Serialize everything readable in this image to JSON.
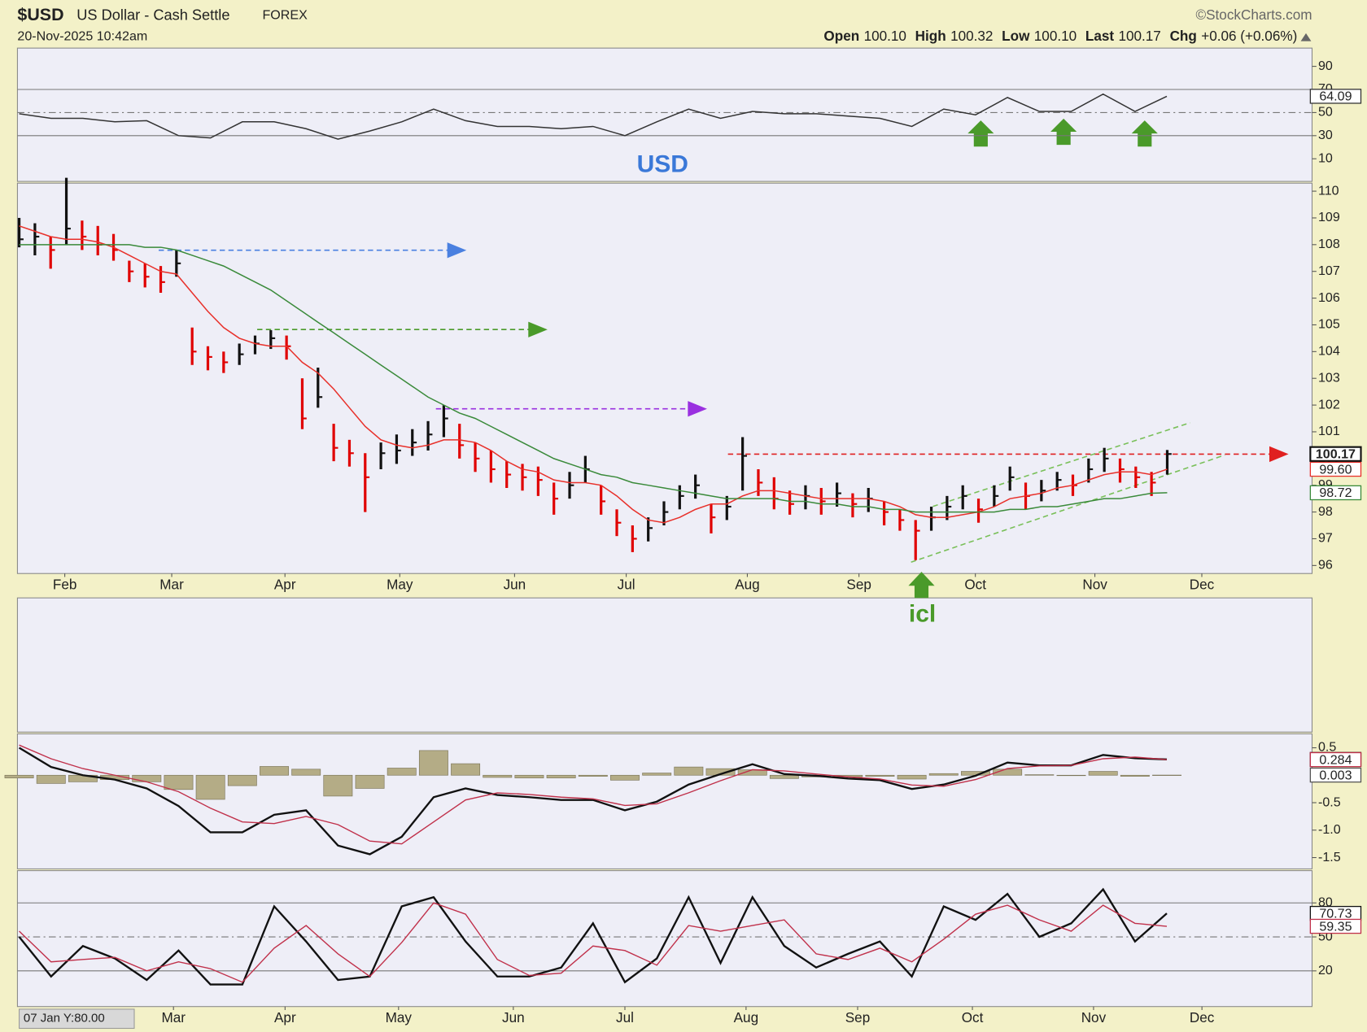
{
  "header": {
    "symbol": "$USD",
    "name": "US Dollar - Cash Settle",
    "exchange": "FOREX",
    "credit": "©StockCharts.com",
    "datetime": "20-Nov-2025 10:42am",
    "open_label": "Open",
    "open": "100.10",
    "high_label": "High",
    "high": "100.32",
    "low_label": "Low",
    "low": "100.10",
    "last_label": "Last",
    "last": "100.17",
    "chg_label": "Chg",
    "chg": "+0.06 (+0.06%)"
  },
  "cursor_readout": "07 Jan Y:80.00",
  "chart_data": [
    {
      "type": "line",
      "annotation": "USD",
      "xlim": [
        0,
        40.5
      ],
      "ylim": [
        -9.6,
        105.8
      ],
      "yticks": [
        10,
        30,
        50,
        70,
        90
      ],
      "ref_lines": [
        30,
        70
      ],
      "dashed_ref_line": 50,
      "series": [
        {
          "color": "#333333",
          "values": [
            49,
            45,
            45,
            42,
            43,
            30,
            28,
            42,
            42,
            36,
            27,
            34,
            42,
            53,
            43,
            38,
            38,
            36,
            38,
            30,
            42,
            53,
            45,
            51,
            49,
            49,
            47,
            45,
            38,
            53,
            48,
            63,
            51,
            51,
            66,
            51,
            64.09
          ]
        }
      ]
    },
    {
      "type": "ohlc",
      "annotation": "icl",
      "xlim": [
        0,
        82.1
      ],
      "ylim": [
        95.7,
        110.3
      ],
      "yticks": [
        96,
        97,
        98,
        99,
        100,
        101,
        102,
        103,
        104,
        105,
        106,
        107,
        108,
        109,
        110
      ],
      "xticks": [
        {
          "value": 2.9,
          "label": "Feb"
        },
        {
          "value": 9.7,
          "label": "Mar"
        },
        {
          "value": 16.9,
          "label": "Apr"
        },
        {
          "value": 24.2,
          "label": "May"
        },
        {
          "value": 31.5,
          "label": "Jun"
        },
        {
          "value": 38.6,
          "label": "Jul"
        },
        {
          "value": 46.3,
          "label": "Aug"
        },
        {
          "value": 53.4,
          "label": "Sep"
        },
        {
          "value": 60.8,
          "label": "Oct"
        },
        {
          "value": 68.4,
          "label": "Nov"
        },
        {
          "value": 75.2,
          "label": "Dec"
        }
      ],
      "up_color": "#111111",
      "down_color": "#e00000",
      "close": [
        108.2,
        108.3,
        107.8,
        108.6,
        108.3,
        108.0,
        107.8,
        107.0,
        106.8,
        106.6,
        107.3,
        104.0,
        103.8,
        103.6,
        103.9,
        104.3,
        104.5,
        104.2,
        101.5,
        102.3,
        100.4,
        100.2,
        99.3,
        100.2,
        100.3,
        100.6,
        100.9,
        101.5,
        100.5,
        100.0,
        99.6,
        99.4,
        99.3,
        99.2,
        98.5,
        99.0,
        99.6,
        98.4,
        97.6,
        97.0,
        97.4,
        98.0,
        98.6,
        99.0,
        97.8,
        98.2,
        100.1,
        99.1,
        98.5,
        98.3,
        98.6,
        98.4,
        98.7,
        98.3,
        98.5,
        98.0,
        97.7,
        97.3,
        97.8,
        98.2,
        98.6,
        98.1,
        98.6,
        99.3,
        98.6,
        98.8,
        99.2,
        99.0,
        99.6,
        100.0,
        99.6,
        99.3,
        99.1,
        100.17
      ],
      "high": [
        109.0,
        108.8,
        108.3,
        110.5,
        108.9,
        108.7,
        108.4,
        107.4,
        107.3,
        107.2,
        107.8,
        104.9,
        104.2,
        104.0,
        104.3,
        104.6,
        104.8,
        104.6,
        103.0,
        103.4,
        101.3,
        100.7,
        100.2,
        100.6,
        100.9,
        101.1,
        101.4,
        102.0,
        101.3,
        100.6,
        100.3,
        99.9,
        99.8,
        99.7,
        99.1,
        99.5,
        100.1,
        99.0,
        98.1,
        97.5,
        97.8,
        98.4,
        99.0,
        99.4,
        98.3,
        98.6,
        100.8,
        99.6,
        99.3,
        98.8,
        99.0,
        98.9,
        99.1,
        98.7,
        98.9,
        98.4,
        98.1,
        97.7,
        98.2,
        98.6,
        99.0,
        98.5,
        99.0,
        99.7,
        99.1,
        99.2,
        99.5,
        99.4,
        100.0,
        100.4,
        100.0,
        99.7,
        99.5,
        100.32
      ],
      "low": [
        107.9,
        107.6,
        107.1,
        108.0,
        107.8,
        107.6,
        107.4,
        106.6,
        106.4,
        106.2,
        106.8,
        103.5,
        103.3,
        103.2,
        103.5,
        103.9,
        104.1,
        103.7,
        101.1,
        101.9,
        99.9,
        99.7,
        98.0,
        99.6,
        99.8,
        100.1,
        100.3,
        100.8,
        100.0,
        99.5,
        99.1,
        98.9,
        98.8,
        98.6,
        97.9,
        98.5,
        99.1,
        97.9,
        97.1,
        96.5,
        96.9,
        97.5,
        98.1,
        98.5,
        97.2,
        97.7,
        98.8,
        98.6,
        98.1,
        97.9,
        98.1,
        97.9,
        98.2,
        97.8,
        98.0,
        97.5,
        97.3,
        96.2,
        97.3,
        97.7,
        98.1,
        97.6,
        98.2,
        98.8,
        98.1,
        98.4,
        98.8,
        98.6,
        99.1,
        99.5,
        99.1,
        98.9,
        98.6,
        99.4
      ],
      "series": [
        {
          "color": "#e8302a",
          "last_label": "99.60",
          "values": [
            108.7,
            108.5,
            108.3,
            108.2,
            108.2,
            108.1,
            107.9,
            107.6,
            107.3,
            107.0,
            106.9,
            106.2,
            105.5,
            104.9,
            104.5,
            104.3,
            104.2,
            104.2,
            103.6,
            103.2,
            102.6,
            101.9,
            101.2,
            100.7,
            100.5,
            100.4,
            100.5,
            100.7,
            100.7,
            100.6,
            100.3,
            99.9,
            99.6,
            99.5,
            99.2,
            99.1,
            99.1,
            99.0,
            98.6,
            98.1,
            97.7,
            97.6,
            97.8,
            98.1,
            98.3,
            98.3,
            98.6,
            98.8,
            98.8,
            98.7,
            98.6,
            98.5,
            98.5,
            98.5,
            98.5,
            98.4,
            98.2,
            97.9,
            97.8,
            97.8,
            97.9,
            98.0,
            98.2,
            98.5,
            98.6,
            98.7,
            98.9,
            99.0,
            99.2,
            99.4,
            99.5,
            99.5,
            99.4,
            99.6
          ]
        },
        {
          "color": "#3a8a3a",
          "values": [
            108.0,
            108.0,
            108.0,
            108.0,
            108.0,
            108.0,
            108.0,
            108.0,
            107.9,
            107.9,
            107.8,
            107.6,
            107.4,
            107.2,
            106.9,
            106.6,
            106.3,
            105.9,
            105.5,
            105.1,
            104.7,
            104.3,
            103.9,
            103.5,
            103.1,
            102.7,
            102.3,
            102.0,
            101.7,
            101.5,
            101.2,
            100.9,
            100.6,
            100.3,
            100.0,
            99.8,
            99.6,
            99.4,
            99.3,
            99.1,
            99.0,
            98.9,
            98.8,
            98.7,
            98.6,
            98.5,
            98.5,
            98.5,
            98.5,
            98.4,
            98.4,
            98.3,
            98.3,
            98.2,
            98.2,
            98.1,
            98.1,
            98.0,
            98.0,
            98.0,
            98.0,
            98.0,
            98.0,
            98.1,
            98.1,
            98.2,
            98.2,
            98.3,
            98.4,
            98.5,
            98.5,
            98.6,
            98.7,
            98.72
          ]
        }
      ]
    },
    {
      "type": "macd",
      "xlim": [
        0,
        40.5
      ],
      "ylim": [
        -1.706,
        0.754
      ],
      "yticks": [
        0.5,
        -0.5,
        {
          "value": -1,
          "label": "-1.0"
        },
        -1.5
      ],
      "histogram": {
        "color": "#b4ac86",
        "values": [
          -0.05,
          -0.15,
          -0.12,
          -0.08,
          -0.12,
          -0.26,
          -0.44,
          -0.19,
          0.16,
          0.11,
          -0.38,
          -0.24,
          0.13,
          0.45,
          0.21,
          -0.04,
          -0.05,
          -0.05,
          -0.02,
          -0.09,
          0.04,
          0.15,
          0.12,
          0.1,
          -0.06,
          -0.03,
          -0.03,
          -0.02,
          -0.07,
          0.03,
          0.07,
          0.11,
          0.01,
          0.0,
          0.07,
          -0.02,
          0.003
        ]
      },
      "series": [
        {
          "color": "#111111",
          "width": 2.2,
          "values": [
            0.5,
            0.15,
            0,
            -0.08,
            -0.24,
            -0.56,
            -1.04,
            -1.04,
            -0.72,
            -0.64,
            -1.28,
            -1.44,
            -1.12,
            -0.4,
            -0.24,
            -0.36,
            -0.4,
            -0.45,
            -0.45,
            -0.64,
            -0.48,
            -0.17,
            0.02,
            0.2,
            0.02,
            -0.01,
            -0.06,
            -0.09,
            -0.25,
            -0.17,
            -0.01,
            0.23,
            0.18,
            0.18,
            0.37,
            0.31,
            0.287
          ]
        },
        {
          "color": "#c0304a",
          "width": 1.3,
          "values": [
            0.55,
            0.3,
            0.12,
            0.0,
            -0.12,
            -0.3,
            -0.6,
            -0.85,
            -0.88,
            -0.75,
            -0.9,
            -1.2,
            -1.25,
            -0.85,
            -0.45,
            -0.32,
            -0.35,
            -0.4,
            -0.43,
            -0.55,
            -0.52,
            -0.32,
            -0.1,
            0.1,
            0.08,
            0.02,
            -0.03,
            -0.07,
            -0.18,
            -0.2,
            -0.08,
            0.12,
            0.17,
            0.18,
            0.3,
            0.33,
            0.284
          ]
        }
      ]
    },
    {
      "type": "line",
      "xlim": [
        0,
        40.5
      ],
      "ylim": [
        -11.5,
        108.5
      ],
      "yticks": [
        20,
        50,
        80
      ],
      "ref_lines": [
        20,
        80
      ],
      "dashed_ref_line": 50,
      "xticks": [
        {
          "value": 4.84,
          "label": "Mar"
        },
        {
          "value": 8.34,
          "label": "Apr"
        },
        {
          "value": 11.9,
          "label": "May"
        },
        {
          "value": 15.5,
          "label": "Jun"
        },
        {
          "value": 19.0,
          "label": "Jul"
        },
        {
          "value": 22.8,
          "label": "Aug"
        },
        {
          "value": 26.3,
          "label": "Sep"
        },
        {
          "value": 29.9,
          "label": "Oct"
        },
        {
          "value": 33.7,
          "label": "Nov"
        },
        {
          "value": 37.1,
          "label": "Dec"
        }
      ],
      "series": [
        {
          "color": "#111111",
          "width": 2.2,
          "values": [
            50,
            15,
            42,
            31,
            12,
            38,
            8,
            8,
            77,
            46,
            12,
            15,
            77,
            85,
            46,
            15,
            15,
            23,
            62,
            10,
            31,
            85,
            27,
            85,
            42,
            23,
            35,
            46,
            15,
            77,
            65,
            88,
            50,
            62,
            92,
            46,
            70.73
          ]
        },
        {
          "color": "#c0304a",
          "width": 1.3,
          "values": [
            55,
            28,
            30,
            32,
            20,
            28,
            22,
            10,
            40,
            60,
            35,
            15,
            45,
            80,
            70,
            30,
            16,
            18,
            42,
            38,
            25,
            60,
            55,
            60,
            65,
            35,
            30,
            40,
            28,
            48,
            70,
            78,
            65,
            55,
            78,
            62,
            59.35
          ]
        }
      ]
    }
  ]
}
